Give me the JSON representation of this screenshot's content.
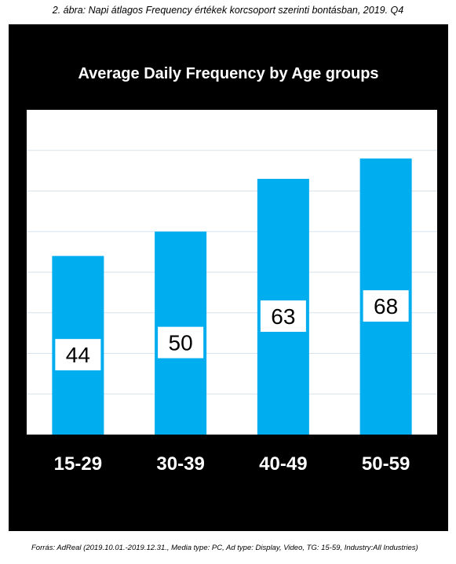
{
  "caption": "2. ábra: Napi átlagos Frequency értékek korcsoport szerinti bontásban, 2019. Q4",
  "source": "Forrás: AdReal (2019.10.01.-2019.12.31., Media type: PC, Ad type: Display, Video, TG: 15-59, Industry:All Industries)",
  "colors": {
    "figure_background": "#000000",
    "plot_background": "#ffffff",
    "bar": "#00adef",
    "gridline": "#d6e3ee",
    "axis_text": "#ffffff"
  },
  "chart_data": {
    "type": "bar",
    "title": "Average Daily Frequency by Age groups",
    "categories": [
      "15-29",
      "30-39",
      "40-49",
      "50-59"
    ],
    "values": [
      44,
      50,
      63,
      68
    ],
    "data_labels": [
      "44",
      "50",
      "63",
      "68"
    ],
    "xlabel": "",
    "ylabel": "",
    "ylim": [
      0,
      80
    ],
    "grid": true,
    "legend": "none",
    "y_tick_labels_shown": false
  }
}
